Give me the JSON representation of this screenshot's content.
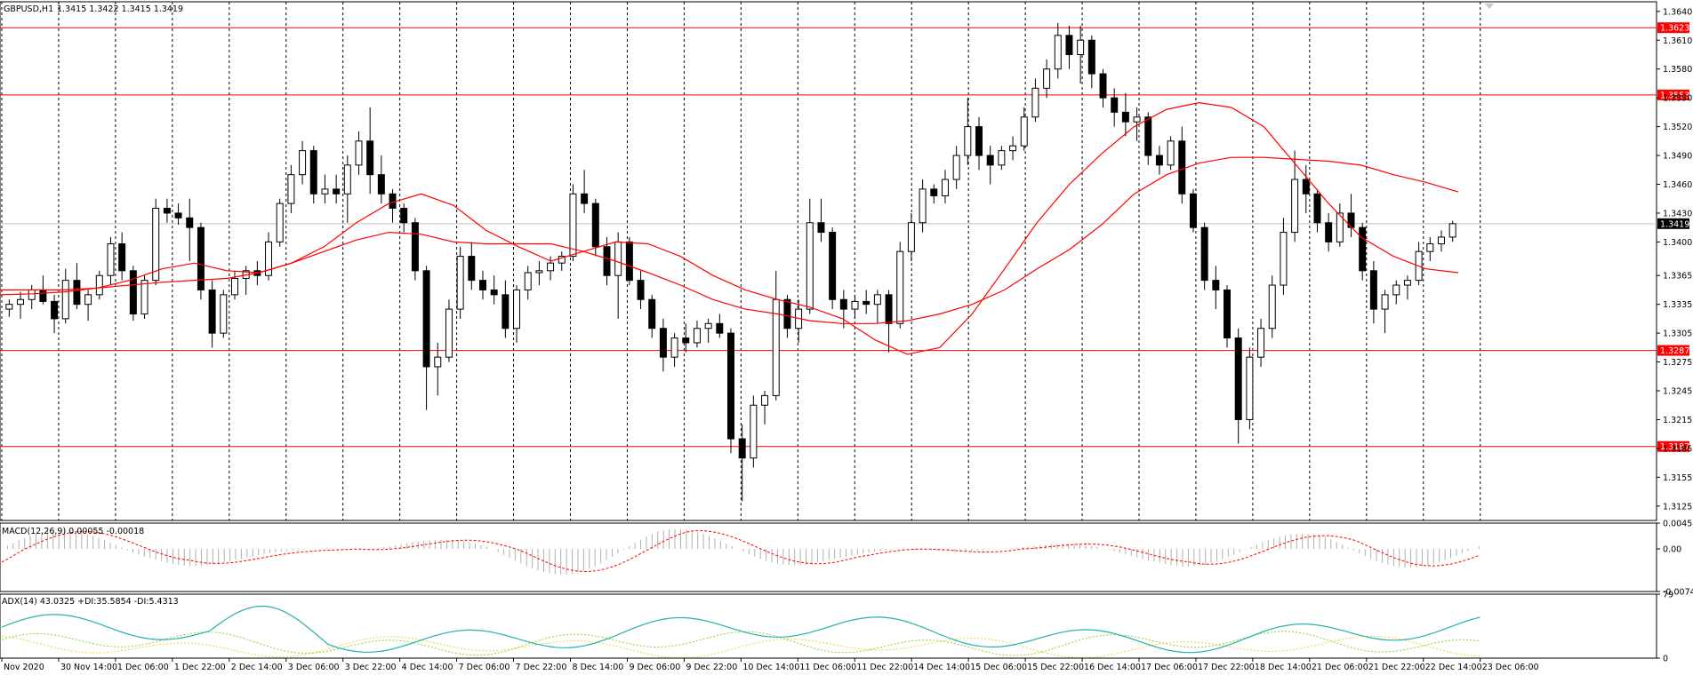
{
  "header": {
    "symbol": "GBPUSD,H1",
    "ohlc": "1.3415 1.3422 1.3415 1.3419"
  },
  "colors": {
    "background": "#ffffff",
    "candles": "#000000",
    "level_lines": "#ff0000",
    "ma": "#ff0000",
    "level_tag_bg": "#ff0000",
    "current_price_tag_bg": "#000000",
    "macd_hist": "#b0b0b0",
    "macd_signal": "#ff0000",
    "adx": "#20b2aa",
    "plus_di": "#9acd32",
    "minus_di": "#f4d03f"
  },
  "chart_data": [
    {
      "type": "candlestick",
      "title": "GBPUSD,H1",
      "ylim": [
        1.311,
        1.365
      ],
      "y_ticks": [
        "1.3640",
        "1.3610",
        "1.3580",
        "1.3550",
        "1.3520",
        "1.3490",
        "1.3460",
        "1.3430",
        "1.3400",
        "1.3365",
        "1.3335",
        "1.3305",
        "1.3275",
        "1.3245",
        "1.3215",
        "1.3185",
        "1.3155",
        "1.3125"
      ],
      "x_ticks": [
        "Nov 2020",
        "30 Nov 14:00",
        "1 Dec 06:00",
        "1 Dec 22:00",
        "2 Dec 14:00",
        "3 Dec 06:00",
        "3 Dec 22:00",
        "4 Dec 14:00",
        "7 Dec 06:00",
        "7 Dec 22:00",
        "8 Dec 14:00",
        "9 Dec 06:00",
        "9 Dec 22:00",
        "10 Dec 14:00",
        "11 Dec 06:00",
        "11 Dec 22:00",
        "14 Dec 14:00",
        "15 Dec 06:00",
        "15 Dec 22:00",
        "16 Dec 14:00",
        "17 Dec 06:00",
        "17 Dec 22:00",
        "18 Dec 14:00",
        "21 Dec 06:00",
        "21 Dec 22:00",
        "22 Dec 14:00",
        "23 Dec 06:00"
      ],
      "levels": [
        "1.3623",
        "1.3553",
        "1.3287",
        "1.3187"
      ],
      "current_price": "1.3419",
      "series": [
        {
          "kind": "candles",
          "values_approx": [
            [
              1.333,
              1.334,
              1.3322,
              1.3335
            ],
            [
              1.3335,
              1.3348,
              1.332,
              1.334
            ],
            [
              1.334,
              1.3355,
              1.333,
              1.335
            ],
            [
              1.335,
              1.3365,
              1.3335,
              1.3338
            ],
            [
              1.3338,
              1.3345,
              1.3305,
              1.332
            ],
            [
              1.332,
              1.3372,
              1.3315,
              1.336
            ],
            [
              1.336,
              1.3378,
              1.333,
              1.3335
            ],
            [
              1.3335,
              1.335,
              1.3318,
              1.3345
            ],
            [
              1.3345,
              1.337,
              1.334,
              1.3365
            ],
            [
              1.3365,
              1.3405,
              1.3355,
              1.3398
            ],
            [
              1.3398,
              1.341,
              1.336,
              1.337
            ],
            [
              1.337,
              1.3375,
              1.3318,
              1.3325
            ],
            [
              1.3325,
              1.3365,
              1.332,
              1.336
            ],
            [
              1.336,
              1.3445,
              1.3355,
              1.3435
            ],
            [
              1.3435,
              1.3445,
              1.342,
              1.343
            ],
            [
              1.343,
              1.344,
              1.3418,
              1.3425
            ],
            [
              1.3425,
              1.3445,
              1.338,
              1.3415
            ],
            [
              1.3415,
              1.342,
              1.334,
              1.335
            ],
            [
              1.335,
              1.336,
              1.329,
              1.3305
            ],
            [
              1.3305,
              1.335,
              1.33,
              1.3345
            ],
            [
              1.3345,
              1.337,
              1.334,
              1.3362
            ],
            [
              1.3362,
              1.3375,
              1.3345,
              1.337
            ],
            [
              1.337,
              1.338,
              1.3355,
              1.3365
            ],
            [
              1.3365,
              1.341,
              1.336,
              1.34
            ],
            [
              1.34,
              1.3445,
              1.3395,
              1.344
            ],
            [
              1.344,
              1.348,
              1.343,
              1.347
            ],
            [
              1.347,
              1.3505,
              1.346,
              1.3495
            ],
            [
              1.3495,
              1.35,
              1.344,
              1.345
            ],
            [
              1.345,
              1.347,
              1.344,
              1.3455
            ],
            [
              1.3455,
              1.347,
              1.344,
              1.345
            ],
            [
              1.345,
              1.349,
              1.342,
              1.348
            ],
            [
              1.348,
              1.3515,
              1.347,
              1.3505
            ],
            [
              1.3505,
              1.354,
              1.345,
              1.347
            ],
            [
              1.347,
              1.349,
              1.344,
              1.345
            ],
            [
              1.345,
              1.3455,
              1.342,
              1.3435
            ],
            [
              1.3435,
              1.344,
              1.341,
              1.342
            ],
            [
              1.342,
              1.3425,
              1.336,
              1.337
            ],
            [
              1.337,
              1.3375,
              1.3225,
              1.327
            ],
            [
              1.327,
              1.3295,
              1.324,
              1.328
            ],
            [
              1.328,
              1.334,
              1.3275,
              1.333
            ],
            [
              1.333,
              1.3395,
              1.332,
              1.3385
            ],
            [
              1.3385,
              1.34,
              1.335,
              1.336
            ],
            [
              1.336,
              1.337,
              1.334,
              1.335
            ],
            [
              1.335,
              1.3365,
              1.3335,
              1.3345
            ],
            [
              1.3345,
              1.336,
              1.33,
              1.331
            ],
            [
              1.331,
              1.3355,
              1.3295,
              1.335
            ],
            [
              1.335,
              1.3375,
              1.334,
              1.3368
            ],
            [
              1.3368,
              1.338,
              1.3355,
              1.337
            ],
            [
              1.337,
              1.3385,
              1.336,
              1.3378
            ],
            [
              1.3378,
              1.339,
              1.337,
              1.3385
            ],
            [
              1.3385,
              1.346,
              1.338,
              1.345
            ],
            [
              1.345,
              1.3475,
              1.343,
              1.344
            ],
            [
              1.344,
              1.3445,
              1.3385,
              1.3395
            ],
            [
              1.3395,
              1.3405,
              1.3355,
              1.3365
            ],
            [
              1.3365,
              1.341,
              1.332,
              1.34
            ],
            [
              1.34,
              1.3405,
              1.3355,
              1.336
            ],
            [
              1.336,
              1.337,
              1.333,
              1.334
            ],
            [
              1.334,
              1.3345,
              1.33,
              1.331
            ],
            [
              1.331,
              1.332,
              1.3265,
              1.328
            ],
            [
              1.328,
              1.3305,
              1.327,
              1.33
            ],
            [
              1.33,
              1.3315,
              1.3285,
              1.3295
            ],
            [
              1.3295,
              1.3318,
              1.329,
              1.331
            ],
            [
              1.331,
              1.332,
              1.3295,
              1.3315
            ],
            [
              1.3315,
              1.3325,
              1.33,
              1.3305
            ],
            [
              1.3305,
              1.331,
              1.318,
              1.3195
            ],
            [
              1.3195,
              1.321,
              1.313,
              1.3175
            ],
            [
              1.3175,
              1.324,
              1.3165,
              1.323
            ],
            [
              1.323,
              1.3245,
              1.321,
              1.324
            ],
            [
              1.324,
              1.337,
              1.3235,
              1.334
            ],
            [
              1.334,
              1.3345,
              1.33,
              1.331
            ],
            [
              1.331,
              1.334,
              1.3295,
              1.333
            ],
            [
              1.333,
              1.3445,
              1.3325,
              1.342
            ],
            [
              1.342,
              1.3445,
              1.34,
              1.341
            ],
            [
              1.341,
              1.3415,
              1.333,
              1.334
            ],
            [
              1.334,
              1.335,
              1.331,
              1.333
            ],
            [
              1.333,
              1.3345,
              1.332,
              1.3338
            ],
            [
              1.3338,
              1.335,
              1.3325,
              1.3335
            ],
            [
              1.3335,
              1.335,
              1.3315,
              1.3345
            ],
            [
              1.3345,
              1.335,
              1.3285,
              1.3315
            ],
            [
              1.3315,
              1.34,
              1.331,
              1.339
            ],
            [
              1.339,
              1.343,
              1.338,
              1.342
            ],
            [
              1.342,
              1.3465,
              1.341,
              1.3455
            ],
            [
              1.3455,
              1.346,
              1.344,
              1.3448
            ],
            [
              1.3448,
              1.3475,
              1.344,
              1.3465
            ],
            [
              1.3465,
              1.35,
              1.3455,
              1.349
            ],
            [
              1.349,
              1.355,
              1.348,
              1.352
            ],
            [
              1.352,
              1.353,
              1.3475,
              1.349
            ],
            [
              1.349,
              1.35,
              1.346,
              1.348
            ],
            [
              1.348,
              1.35,
              1.3475,
              1.3495
            ],
            [
              1.3495,
              1.351,
              1.3485,
              1.35
            ],
            [
              1.35,
              1.354,
              1.3495,
              1.353
            ],
            [
              1.353,
              1.357,
              1.3525,
              1.356
            ],
            [
              1.356,
              1.359,
              1.355,
              1.358
            ],
            [
              1.358,
              1.3628,
              1.357,
              1.3615
            ],
            [
              1.3615,
              1.3625,
              1.358,
              1.3595
            ],
            [
              1.3595,
              1.3625,
              1.3565,
              1.361
            ],
            [
              1.361,
              1.3615,
              1.356,
              1.3575
            ],
            [
              1.3575,
              1.358,
              1.354,
              1.355
            ],
            [
              1.355,
              1.356,
              1.352,
              1.3535
            ],
            [
              1.3535,
              1.3555,
              1.351,
              1.3525
            ],
            [
              1.3525,
              1.354,
              1.3505,
              1.353
            ],
            [
              1.353,
              1.3535,
              1.348,
              1.349
            ],
            [
              1.349,
              1.35,
              1.347,
              1.348
            ],
            [
              1.348,
              1.351,
              1.3475,
              1.3505
            ],
            [
              1.3505,
              1.352,
              1.344,
              1.345
            ],
            [
              1.345,
              1.3455,
              1.341,
              1.3415
            ],
            [
              1.3415,
              1.342,
              1.335,
              1.336
            ],
            [
              1.336,
              1.3375,
              1.333,
              1.335
            ],
            [
              1.335,
              1.3355,
              1.329,
              1.33
            ],
            [
              1.33,
              1.331,
              1.319,
              1.3215
            ],
            [
              1.3215,
              1.329,
              1.3205,
              1.328
            ],
            [
              1.328,
              1.332,
              1.327,
              1.331
            ],
            [
              1.331,
              1.3365,
              1.33,
              1.3355
            ],
            [
              1.3355,
              1.3425,
              1.3345,
              1.341
            ],
            [
              1.341,
              1.3495,
              1.34,
              1.3465
            ],
            [
              1.3465,
              1.348,
              1.343,
              1.345
            ],
            [
              1.345,
              1.3455,
              1.341,
              1.342
            ],
            [
              1.342,
              1.343,
              1.339,
              1.34
            ],
            [
              1.34,
              1.344,
              1.3395,
              1.343
            ],
            [
              1.343,
              1.345,
              1.3405,
              1.3415
            ],
            [
              1.3415,
              1.342,
              1.336,
              1.337
            ],
            [
              1.337,
              1.338,
              1.3315,
              1.333
            ],
            [
              1.333,
              1.335,
              1.3305,
              1.3345
            ],
            [
              1.3345,
              1.336,
              1.3335,
              1.3355
            ],
            [
              1.3355,
              1.3365,
              1.334,
              1.336
            ],
            [
              1.336,
              1.34,
              1.3355,
              1.339
            ],
            [
              1.339,
              1.3405,
              1.338,
              1.3398
            ],
            [
              1.3398,
              1.3412,
              1.339,
              1.3405
            ],
            [
              1.3405,
              1.3422,
              1.34,
              1.3419
            ]
          ]
        },
        {
          "kind": "ma_fast",
          "label": "MA",
          "values_approx": [
            1.3345,
            1.3346,
            1.3348,
            1.3352,
            1.336,
            1.3372,
            1.3378,
            1.337,
            1.3368,
            1.3378,
            1.3395,
            1.342,
            1.344,
            1.345,
            1.3438,
            1.3412,
            1.3395,
            1.338,
            1.339,
            1.34,
            1.3398,
            1.3385,
            1.3365,
            1.335,
            1.334,
            1.3332,
            1.332,
            1.3298,
            1.3283,
            1.329,
            1.3325,
            1.3372,
            1.342,
            1.346,
            1.3492,
            1.352,
            1.3538,
            1.3545,
            1.354,
            1.352,
            1.348,
            1.344,
            1.3405,
            1.3385,
            1.3372,
            1.3368
          ]
        },
        {
          "kind": "ma_slow",
          "label": "MA",
          "values_approx": [
            1.335,
            1.335,
            1.335,
            1.3352,
            1.3355,
            1.3358,
            1.336,
            1.3362,
            1.3368,
            1.3378,
            1.339,
            1.3402,
            1.341,
            1.3408,
            1.34,
            1.3398,
            1.3398,
            1.3398,
            1.339,
            1.338,
            1.3368,
            1.3355,
            1.334,
            1.333,
            1.3325,
            1.3318,
            1.3315,
            1.3315,
            1.3318,
            1.3325,
            1.3335,
            1.335,
            1.3372,
            1.3392,
            1.3418,
            1.345,
            1.347,
            1.3482,
            1.3488,
            1.3488,
            1.3486,
            1.3484,
            1.348,
            1.347,
            1.3462,
            1.3452
          ]
        }
      ]
    },
    {
      "type": "histogram",
      "title": "MACD(12,26,9) 0.00055 -0.00018",
      "ylim": [
        -0.00747,
        0.00452
      ],
      "y_ticks": [
        "0.00452",
        "0.00",
        "-0.00747"
      ]
    },
    {
      "type": "line",
      "title": "ADX(14) 43.0325 +DI:35.5854 -DI:5.4313",
      "ylim": [
        0,
        79
      ],
      "y_ticks": [
        "79",
        "0"
      ]
    }
  ]
}
